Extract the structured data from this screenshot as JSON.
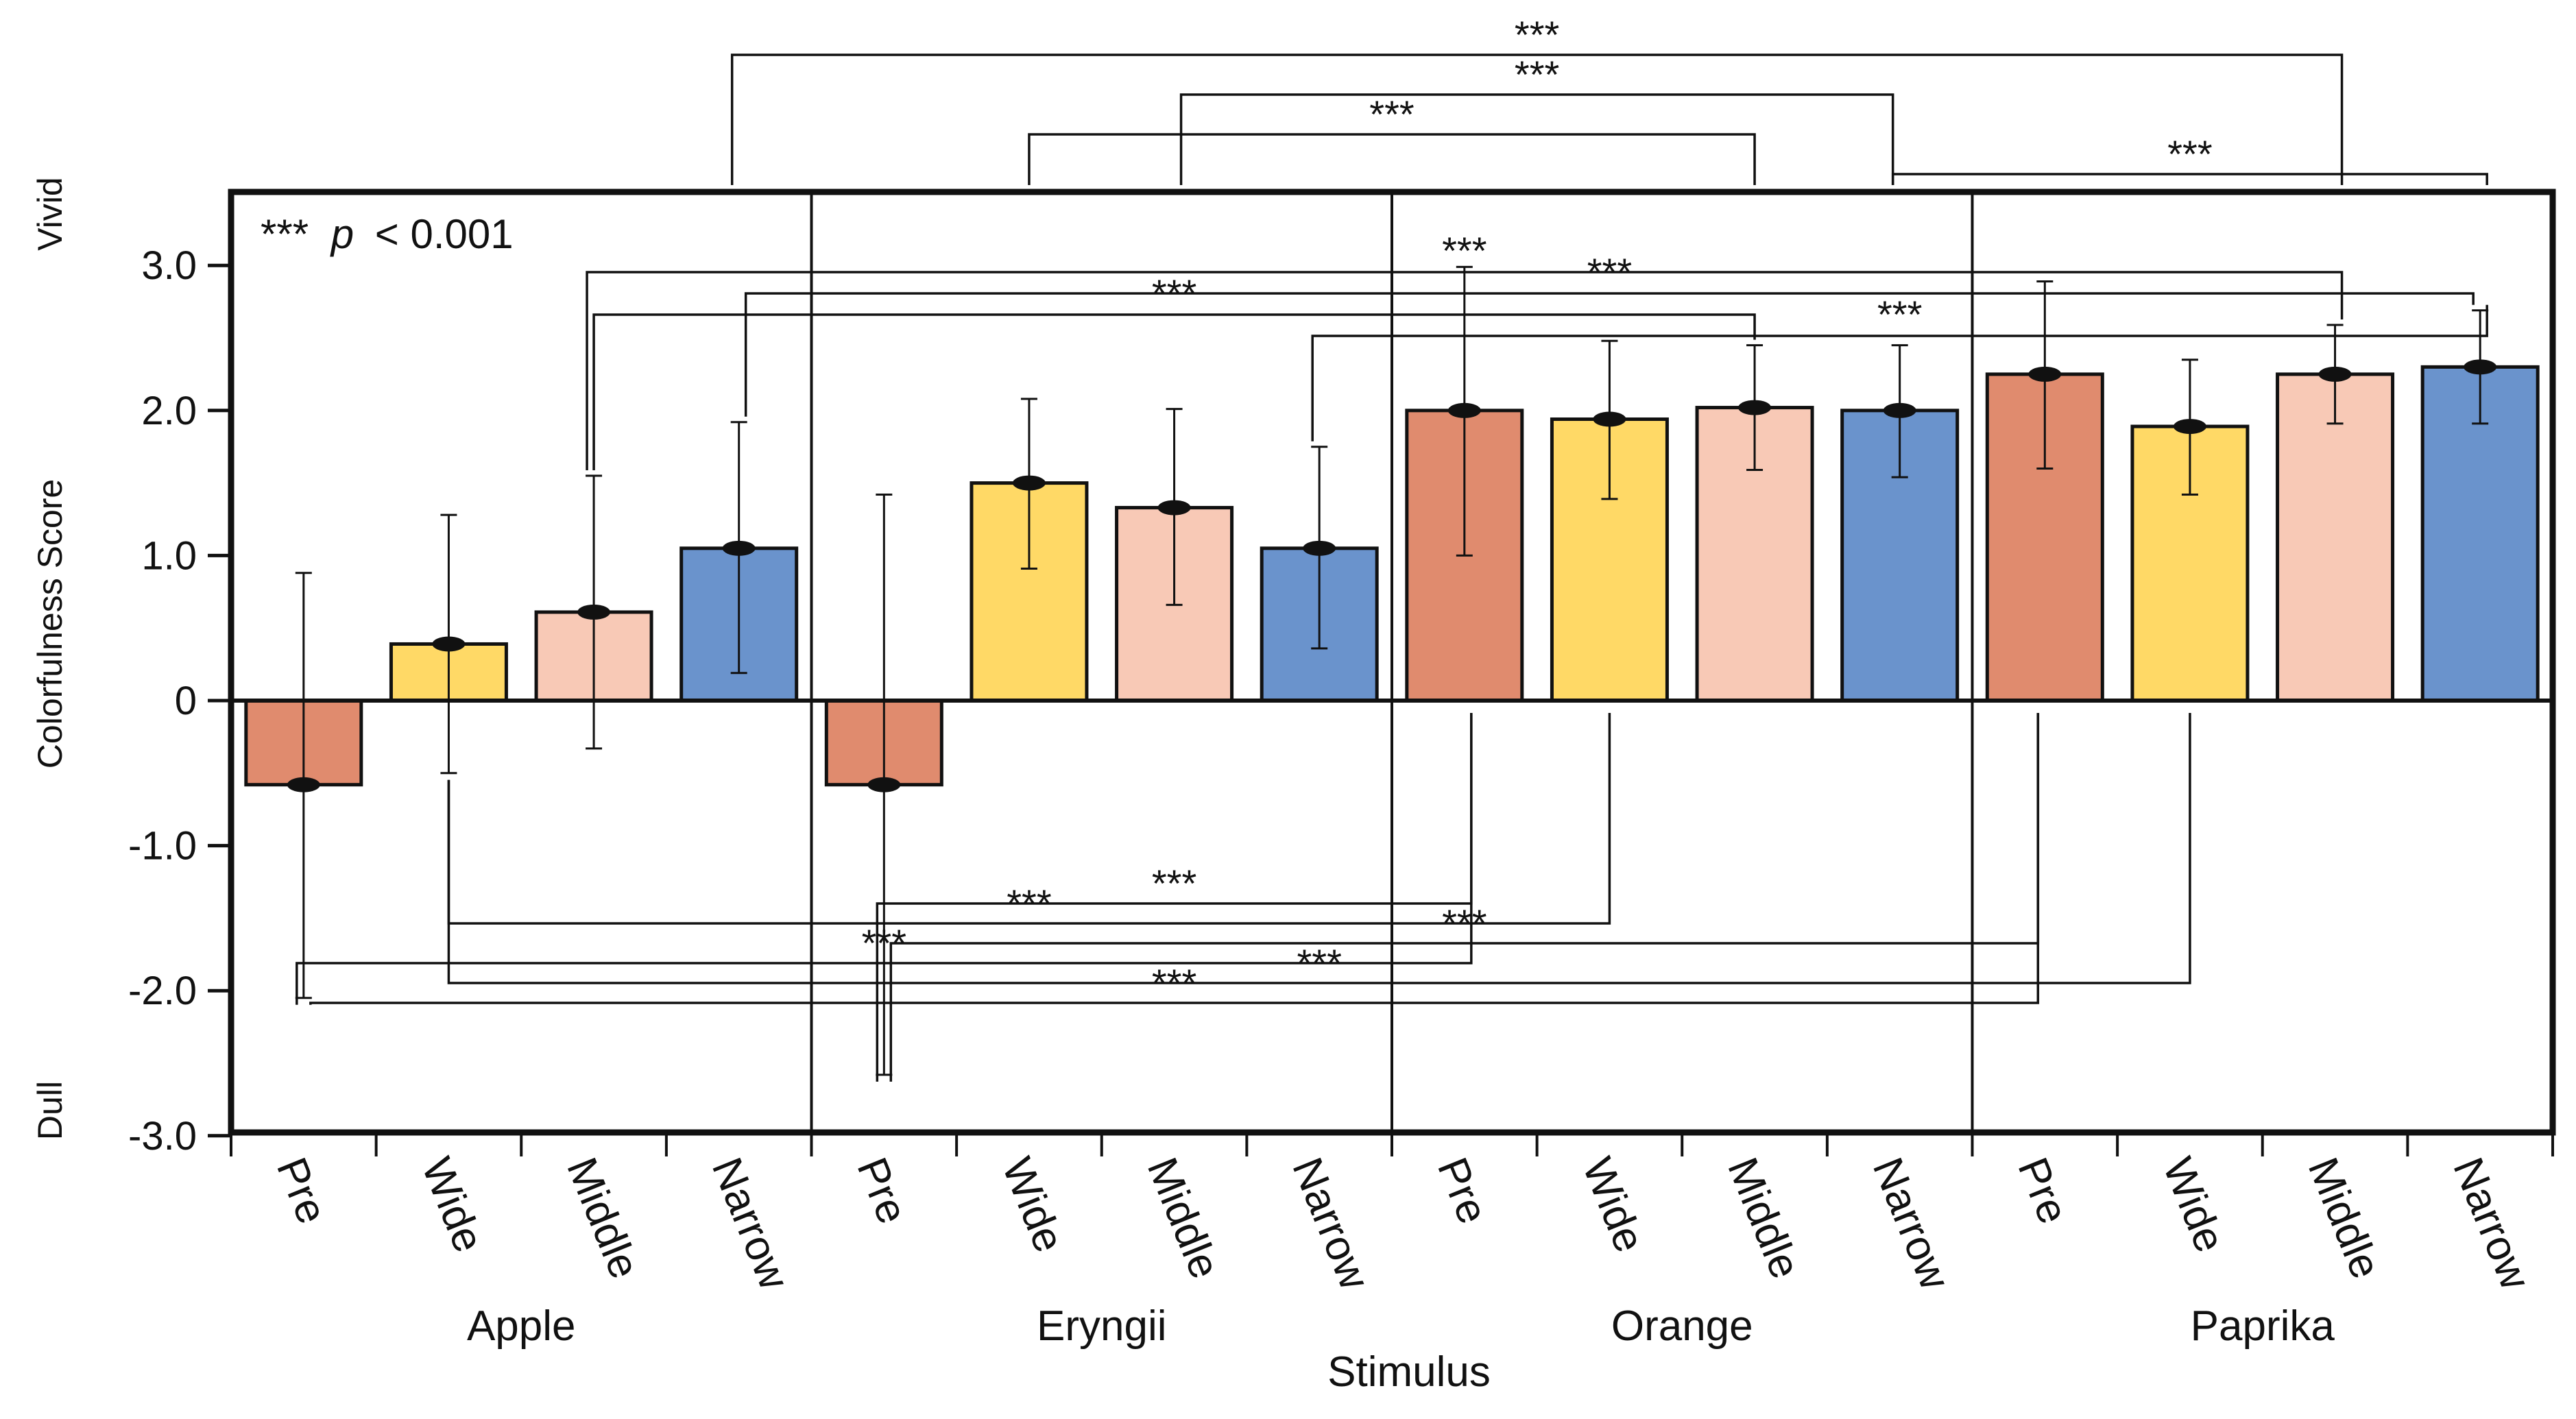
{
  "chart_data": {
    "type": "bar",
    "ylabel": "Colorfulness Score",
    "xlabel": "Stimulus",
    "ylim": [
      -3.0,
      3.5
    ],
    "yticks": [
      {
        "v": 3.0,
        "label": "3.0"
      },
      {
        "v": 2.0,
        "label": "2.0"
      },
      {
        "v": 1.0,
        "label": "1.0"
      },
      {
        "v": 0,
        "label": "0"
      },
      {
        "v": -1.0,
        "label": "-1.0"
      },
      {
        "v": -2.0,
        "label": "-2.0"
      },
      {
        "v": -3.0,
        "label": "-3.0"
      }
    ],
    "axis_annotations": {
      "top": "Vivid",
      "bottom": "Dull"
    },
    "legend": {
      "stars": "***",
      "italic": "p",
      "rest": "< 0.001"
    },
    "conditions": [
      "Pre",
      "Wide",
      "Middle",
      "Narrow"
    ],
    "condition_colors": [
      "#E08B6E",
      "#FFD966",
      "#F8C9B6",
      "#6A93CC"
    ],
    "groups": [
      {
        "name": "Apple",
        "means": [
          -0.58,
          0.39,
          0.61,
          1.05
        ],
        "err_low": [
          -2.05,
          -0.5,
          -0.33,
          0.19
        ],
        "err_high": [
          0.88,
          1.28,
          1.55,
          1.92
        ]
      },
      {
        "name": "Eryngii",
        "means": [
          -0.58,
          1.5,
          1.33,
          1.05
        ],
        "err_low": [
          -2.58,
          0.91,
          0.66,
          0.36
        ],
        "err_high": [
          1.42,
          2.08,
          2.01,
          1.75
        ]
      },
      {
        "name": "Orange",
        "means": [
          2.0,
          1.94,
          2.02,
          2.0
        ],
        "err_low": [
          1.0,
          1.39,
          1.59,
          1.54
        ],
        "err_high": [
          2.99,
          2.48,
          2.45,
          2.45
        ]
      },
      {
        "name": "Paprika",
        "means": [
          2.25,
          1.89,
          2.25,
          2.3
        ],
        "err_low": [
          1.6,
          1.42,
          1.91,
          1.91
        ],
        "err_high": [
          2.89,
          2.35,
          2.59,
          2.69
        ]
      }
    ],
    "significance": [
      {
        "from": [
          2,
          3
        ],
        "to": [
          3,
          3
        ],
        "placement": "above",
        "label": "***"
      },
      {
        "from": [
          0,
          3
        ],
        "to": [
          3,
          2
        ],
        "placement": "above",
        "label": "***"
      },
      {
        "from": [
          1,
          1
        ],
        "to": [
          2,
          2
        ],
        "placement": "above",
        "label": "***"
      },
      {
        "from": [
          1,
          2
        ],
        "to": [
          2,
          3
        ],
        "placement": "above",
        "label": "***"
      },
      {
        "from": [
          0,
          3
        ],
        "to": [
          3,
          3
        ],
        "placement": "inside",
        "label": "***"
      },
      {
        "from": [
          1,
          3
        ],
        "to": [
          3,
          3
        ],
        "placement": "inside",
        "label": "***"
      },
      {
        "from": [
          0,
          2
        ],
        "to": [
          3,
          2
        ],
        "placement": "inside",
        "label": "***"
      },
      {
        "from": [
          0,
          2
        ],
        "to": [
          2,
          2
        ],
        "placement": "inside",
        "label": "***"
      },
      {
        "from": [
          0,
          1
        ],
        "to": [
          2,
          1
        ],
        "placement": "below",
        "label": "***"
      },
      {
        "from": [
          0,
          1
        ],
        "to": [
          3,
          1
        ],
        "placement": "below",
        "label": "***"
      },
      {
        "from": [
          1,
          0
        ],
        "to": [
          2,
          0
        ],
        "placement": "below",
        "label": "***"
      },
      {
        "from": [
          1,
          0
        ],
        "to": [
          3,
          0
        ],
        "placement": "below",
        "label": "***"
      },
      {
        "from": [
          0,
          0
        ],
        "to": [
          2,
          0
        ],
        "placement": "below",
        "label": "***"
      },
      {
        "from": [
          0,
          0
        ],
        "to": [
          3,
          0
        ],
        "placement": "below",
        "label": "***"
      }
    ]
  }
}
